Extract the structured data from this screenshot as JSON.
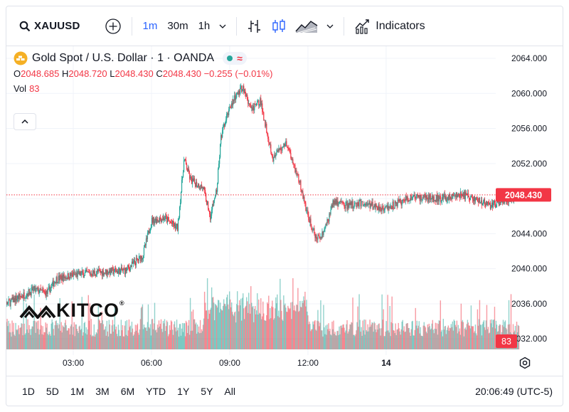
{
  "toolbar": {
    "symbol": "XAUUSD",
    "timeframes": [
      "1m",
      "30m",
      "1h"
    ],
    "active_timeframe": "1m",
    "indicators_label": "Indicators"
  },
  "legend": {
    "title": "Gold Spot / U.S. Dollar · 1 · OANDA",
    "o_label": "O",
    "o_value": "2048.685",
    "h_label": "H",
    "h_value": "2048.720",
    "l_label": "L",
    "l_value": "2048.430",
    "c_label": "C",
    "c_value": "2048.430",
    "change": "−0.255 (−0.01%)",
    "vol_label": "Vol",
    "vol_value": "83",
    "approx_glyph": "≈"
  },
  "bottombar": {
    "ranges": [
      "1D",
      "5D",
      "1M",
      "3M",
      "6M",
      "YTD",
      "1Y",
      "5Y",
      "All"
    ],
    "clock": "20:06:49 (UTC-5)"
  },
  "logo": {
    "text": "KITCO",
    "reg": "®"
  },
  "colors": {
    "up": "#26a69a",
    "down": "#f23645",
    "accent": "#2962ff",
    "grid": "#f0f3fa"
  },
  "chart_data": {
    "type": "candlestick",
    "symbol": "XAUUSD",
    "interval": "1m",
    "y_tick_labels": [
      "2064.000",
      "2060.000",
      "2056.000",
      "2052.000",
      "2048.000",
      "2044.000",
      "2040.000",
      "2036.000",
      "2032.000"
    ],
    "y_ticks": [
      2064,
      2060,
      2056,
      2052,
      2048,
      2044,
      2040,
      2036,
      2032
    ],
    "ylim": [
      2031.2,
      2066.0
    ],
    "x_tick_labels": [
      "03:00",
      "06:00",
      "09:00",
      "12:00",
      "14"
    ],
    "last_price": 2048.43,
    "last_price_label": "2048.430",
    "last_volume": 83,
    "last_volume_label": "83",
    "price_path": [
      {
        "t": "00:00",
        "price": 2035.2
      },
      {
        "t": "00:45",
        "price": 2036.5
      },
      {
        "t": "01:30",
        "price": 2037.6
      },
      {
        "t": "02:00",
        "price": 2037.2
      },
      {
        "t": "02:20",
        "price": 2038.8
      },
      {
        "t": "03:00",
        "price": 2039.3
      },
      {
        "t": "04:00",
        "price": 2039.6
      },
      {
        "t": "05:00",
        "price": 2039.8
      },
      {
        "t": "05:40",
        "price": 2041.5
      },
      {
        "t": "06:00",
        "price": 2045.5
      },
      {
        "t": "06:30",
        "price": 2045.8
      },
      {
        "t": "07:00",
        "price": 2044.6
      },
      {
        "t": "07:15",
        "price": 2052.5
      },
      {
        "t": "07:30",
        "price": 2050.1
      },
      {
        "t": "08:00",
        "price": 2049.2
      },
      {
        "t": "08:15",
        "price": 2046.0
      },
      {
        "t": "08:30",
        "price": 2049.0
      },
      {
        "t": "08:40",
        "price": 2055.0
      },
      {
        "t": "09:00",
        "price": 2058.5
      },
      {
        "t": "09:30",
        "price": 2060.8
      },
      {
        "t": "09:50",
        "price": 2058.0
      },
      {
        "t": "10:10",
        "price": 2059.2
      },
      {
        "t": "10:40",
        "price": 2052.5
      },
      {
        "t": "11:10",
        "price": 2054.5
      },
      {
        "t": "11:40",
        "price": 2050.0
      },
      {
        "t": "12:00",
        "price": 2046.0
      },
      {
        "t": "12:20",
        "price": 2043.2
      },
      {
        "t": "12:40",
        "price": 2044.6
      },
      {
        "t": "13:00",
        "price": 2047.8
      },
      {
        "t": "13:30",
        "price": 2047.2
      },
      {
        "t": "14:00",
        "price": 2047.5
      },
      {
        "t": "15:00",
        "price": 2046.9
      },
      {
        "t": "16:00",
        "price": 2048.2
      },
      {
        "t": "17:00",
        "price": 2048.0
      },
      {
        "t": "18:00",
        "price": 2048.4
      },
      {
        "t": "19:00",
        "price": 2047.2
      },
      {
        "t": "20:06",
        "price": 2048.43
      }
    ]
  }
}
